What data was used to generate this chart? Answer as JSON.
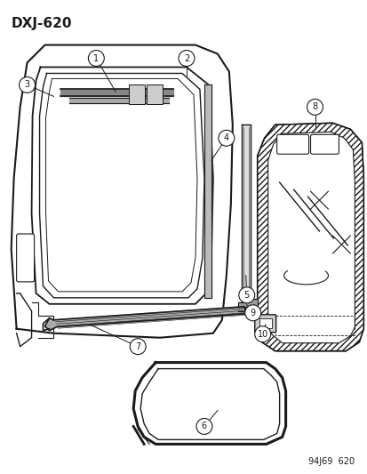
{
  "title": "DXJ-620",
  "footnote": "94J69  620",
  "bg_color": "#ffffff",
  "line_color": "#1a1a1a",
  "figsize": [
    4.14,
    5.33
  ],
  "dpi": 100
}
